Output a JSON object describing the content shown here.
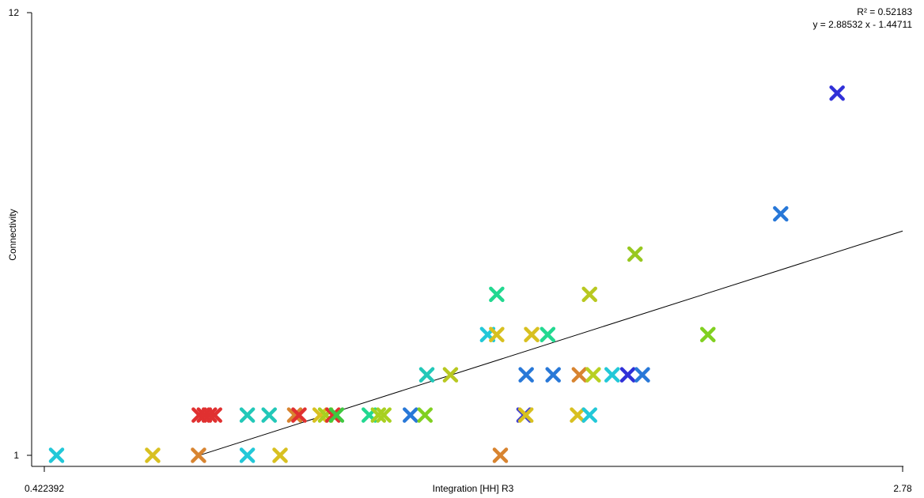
{
  "chart_data": {
    "type": "scatter",
    "xlabel": "Integration [HH] R3",
    "ylabel": "Connectivity",
    "x_ticks": [
      "0.422392",
      "2.78"
    ],
    "y_ticks": [
      "12",
      "1"
    ],
    "xlim": [
      0.422392,
      2.78
    ],
    "ylim": [
      1,
      12
    ],
    "grid": false,
    "marker": "x",
    "annotation": {
      "r2": "R² = 0.52183",
      "equation": "y = 2.88532 x - 1.44711"
    },
    "regression": {
      "slope": 2.88532,
      "intercept": -1.44711,
      "x_start": 0.846,
      "x_end": 2.78
    },
    "points": [
      {
        "x": 0.456,
        "y": 1,
        "color": "#22c8d8"
      },
      {
        "x": 0.72,
        "y": 1,
        "color": "#d8c020"
      },
      {
        "x": 0.846,
        "y": 1,
        "color": "#d88430"
      },
      {
        "x": 0.98,
        "y": 1,
        "color": "#22c8d8"
      },
      {
        "x": 1.07,
        "y": 1,
        "color": "#d8c020"
      },
      {
        "x": 1.675,
        "y": 1,
        "color": "#d88430"
      },
      {
        "x": 0.848,
        "y": 2,
        "color": "#e03030"
      },
      {
        "x": 0.862,
        "y": 2,
        "color": "#e03030"
      },
      {
        "x": 0.876,
        "y": 2,
        "color": "#e03030"
      },
      {
        "x": 0.89,
        "y": 2,
        "color": "#e03030"
      },
      {
        "x": 0.98,
        "y": 2,
        "color": "#22c8b8"
      },
      {
        "x": 1.04,
        "y": 2,
        "color": "#22c8b8"
      },
      {
        "x": 1.11,
        "y": 2,
        "color": "#d88430"
      },
      {
        "x": 1.122,
        "y": 2,
        "color": "#e03030"
      },
      {
        "x": 1.18,
        "y": 2,
        "color": "#d8c020"
      },
      {
        "x": 1.195,
        "y": 2,
        "color": "#a8d020"
      },
      {
        "x": 1.215,
        "y": 2,
        "color": "#e03030"
      },
      {
        "x": 1.225,
        "y": 2,
        "color": "#40c840"
      },
      {
        "x": 1.315,
        "y": 2,
        "color": "#22d890"
      },
      {
        "x": 1.34,
        "y": 2,
        "color": "#a8d020"
      },
      {
        "x": 1.355,
        "y": 2,
        "color": "#a8d020"
      },
      {
        "x": 1.428,
        "y": 2,
        "color": "#2878d8"
      },
      {
        "x": 1.468,
        "y": 2,
        "color": "#80d020"
      },
      {
        "x": 1.74,
        "y": 2,
        "color": "#4040d0"
      },
      {
        "x": 1.745,
        "y": 2,
        "color": "#d8c020"
      },
      {
        "x": 1.887,
        "y": 2,
        "color": "#d8c020"
      },
      {
        "x": 1.92,
        "y": 2,
        "color": "#22c8d8"
      },
      {
        "x": 1.473,
        "y": 3,
        "color": "#22c8b8"
      },
      {
        "x": 1.538,
        "y": 3,
        "color": "#b8c820"
      },
      {
        "x": 1.746,
        "y": 3,
        "color": "#2878d8"
      },
      {
        "x": 1.82,
        "y": 3,
        "color": "#2878d8"
      },
      {
        "x": 1.892,
        "y": 3,
        "color": "#d88430"
      },
      {
        "x": 1.93,
        "y": 3,
        "color": "#b8d020"
      },
      {
        "x": 1.982,
        "y": 3,
        "color": "#22c8d8"
      },
      {
        "x": 2.025,
        "y": 3,
        "color": "#3030d8"
      },
      {
        "x": 2.065,
        "y": 3,
        "color": "#2878d8"
      },
      {
        "x": 1.64,
        "y": 4,
        "color": "#22c8d8"
      },
      {
        "x": 1.665,
        "y": 4,
        "color": "#d8c020"
      },
      {
        "x": 1.761,
        "y": 4,
        "color": "#d8c020"
      },
      {
        "x": 1.805,
        "y": 4,
        "color": "#22d890"
      },
      {
        "x": 2.245,
        "y": 4,
        "color": "#80d020"
      },
      {
        "x": 1.665,
        "y": 5,
        "color": "#22d890"
      },
      {
        "x": 1.92,
        "y": 5,
        "color": "#b8c820"
      },
      {
        "x": 2.045,
        "y": 6,
        "color": "#98c820"
      },
      {
        "x": 2.445,
        "y": 7,
        "color": "#2878d8"
      },
      {
        "x": 2.6,
        "y": 10,
        "color": "#3030d8"
      }
    ]
  }
}
